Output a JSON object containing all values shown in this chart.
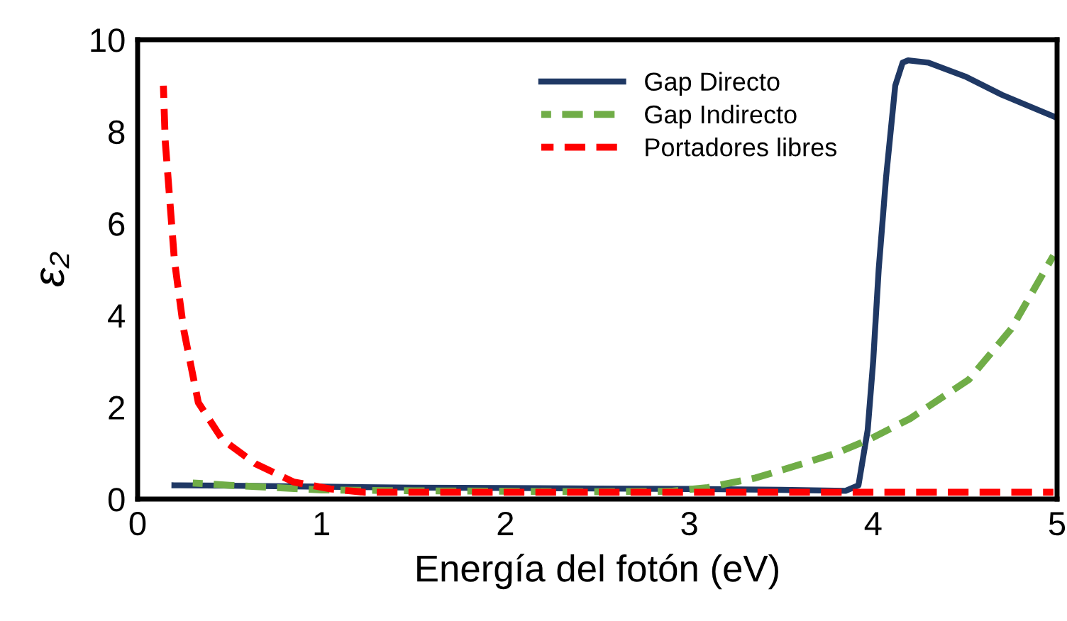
{
  "chart_data": {
    "type": "line",
    "xlabel": "Energía del fotón (eV)",
    "ylabel": "ε₂",
    "xlim": [
      0,
      5
    ],
    "ylim": [
      0,
      10
    ],
    "xticks": [
      0,
      1,
      2,
      3,
      4,
      5
    ],
    "yticks": [
      0,
      2,
      4,
      6,
      8,
      10
    ],
    "grid": false,
    "legend": "top",
    "series": [
      {
        "name": "Gap Directo",
        "color": "#1f3864",
        "line_style": "solid",
        "x": [
          0.2,
          0.5,
          1,
          1.5,
          2,
          2.5,
          3,
          3.5,
          3.85,
          3.92,
          3.97,
          4.0,
          4.03,
          4.07,
          4.12,
          4.16,
          4.19,
          4.3,
          4.5,
          4.7,
          5.0
        ],
        "values": [
          0.3,
          0.29,
          0.27,
          0.25,
          0.24,
          0.23,
          0.22,
          0.2,
          0.18,
          0.3,
          1.5,
          3.0,
          5.0,
          7.0,
          9.0,
          9.5,
          9.55,
          9.5,
          9.2,
          8.8,
          8.3
        ]
      },
      {
        "name": "Gap Indirecto",
        "color": "#70ad47",
        "line_style": "dashed",
        "x": [
          0.3,
          0.5,
          1,
          1.5,
          2,
          2.5,
          2.9,
          3.1,
          3.36,
          3.6,
          3.8,
          3.98,
          4.2,
          4.52,
          4.75,
          4.98
        ],
        "values": [
          0.35,
          0.3,
          0.2,
          0.18,
          0.17,
          0.16,
          0.17,
          0.25,
          0.46,
          0.75,
          1.0,
          1.3,
          1.75,
          2.6,
          3.7,
          5.3
        ]
      },
      {
        "name": "Portadores libres",
        "color": "#ff0000",
        "line_style": "dashed",
        "x": [
          0.14,
          0.15,
          0.2,
          0.25,
          0.33,
          0.46,
          0.64,
          0.85,
          1.05,
          1.23,
          1.5,
          2,
          3,
          4,
          4.98
        ],
        "values": [
          9.0,
          7.8,
          5.2,
          3.7,
          2.1,
          1.3,
          0.77,
          0.37,
          0.22,
          0.15,
          0.15,
          0.15,
          0.15,
          0.15,
          0.15
        ]
      }
    ]
  }
}
